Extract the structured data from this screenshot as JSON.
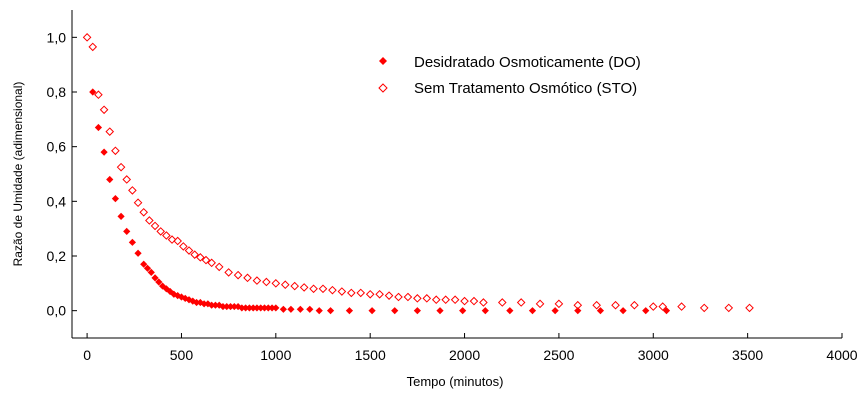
{
  "chart_data": {
    "type": "scatter",
    "xlabel": "Tempo (minutos)",
    "ylabel": "Razão de Umidade (adimensional)",
    "xlim": [
      -80,
      4000
    ],
    "ylim": [
      -0.1,
      1.1
    ],
    "x_ticks": [
      0,
      500,
      1000,
      1500,
      2000,
      2500,
      3000,
      3500,
      4000
    ],
    "x_tick_labels": [
      "0",
      "500",
      "1000",
      "1500",
      "2000",
      "2500",
      "3000",
      "3500",
      "4000"
    ],
    "y_ticks": [
      0.0,
      0.2,
      0.4,
      0.6,
      0.8,
      1.0
    ],
    "y_tick_labels": [
      "0,0",
      "0,2",
      "0,4",
      "0,6",
      "0,8",
      "1,0"
    ],
    "grid": false,
    "legend_position": "top-right",
    "colors": {
      "series_do": "#ff0000",
      "series_sto": "#ff0000",
      "axis": "#000000"
    },
    "series": [
      {
        "name": "Desidratado Osmoticamente (DO)",
        "marker": "filled-diamond",
        "x": [
          30,
          60,
          90,
          120,
          150,
          180,
          210,
          240,
          270,
          300,
          320,
          340,
          360,
          380,
          400,
          420,
          440,
          460,
          480,
          500,
          520,
          540,
          560,
          580,
          600,
          620,
          640,
          660,
          680,
          700,
          720,
          740,
          760,
          780,
          800,
          820,
          840,
          860,
          880,
          900,
          920,
          940,
          960,
          980,
          1000,
          1040,
          1080,
          1130,
          1180,
          1230,
          1290,
          1390,
          1510,
          1630,
          1750,
          1870,
          1990,
          2110,
          2240,
          2360,
          2480,
          2600,
          2720,
          2840,
          2960,
          3070
        ],
        "y": [
          0.8,
          0.67,
          0.58,
          0.48,
          0.41,
          0.345,
          0.29,
          0.25,
          0.21,
          0.17,
          0.155,
          0.14,
          0.12,
          0.105,
          0.09,
          0.08,
          0.07,
          0.06,
          0.055,
          0.05,
          0.045,
          0.04,
          0.035,
          0.03,
          0.03,
          0.025,
          0.025,
          0.02,
          0.02,
          0.02,
          0.015,
          0.015,
          0.015,
          0.015,
          0.015,
          0.01,
          0.01,
          0.01,
          0.01,
          0.01,
          0.01,
          0.01,
          0.01,
          0.01,
          0.01,
          0.005,
          0.005,
          0.005,
          0.005,
          0.0,
          0.0,
          0.0,
          0.0,
          0.0,
          0.0,
          0.0,
          0.0,
          0.0,
          0.0,
          0.0,
          0.0,
          0.0,
          0.0,
          0.0,
          0.0,
          0.0
        ]
      },
      {
        "name": "Sem Tratamento Osmótico (STO)",
        "marker": "open-diamond",
        "x": [
          0,
          30,
          60,
          90,
          120,
          150,
          180,
          210,
          240,
          270,
          300,
          330,
          360,
          390,
          420,
          450,
          480,
          510,
          540,
          570,
          600,
          630,
          660,
          700,
          750,
          800,
          850,
          900,
          950,
          1000,
          1050,
          1100,
          1150,
          1200,
          1250,
          1300,
          1350,
          1400,
          1450,
          1500,
          1550,
          1600,
          1650,
          1700,
          1750,
          1800,
          1850,
          1900,
          1950,
          2000,
          2050,
          2100,
          2200,
          2300,
          2400,
          2500,
          2600,
          2700,
          2800,
          2900,
          3000,
          3050,
          3150,
          3270,
          3400,
          3510
        ],
        "y": [
          1.0,
          0.965,
          0.79,
          0.735,
          0.655,
          0.585,
          0.525,
          0.48,
          0.44,
          0.395,
          0.36,
          0.33,
          0.31,
          0.29,
          0.275,
          0.26,
          0.255,
          0.235,
          0.22,
          0.205,
          0.195,
          0.185,
          0.175,
          0.16,
          0.14,
          0.13,
          0.12,
          0.11,
          0.105,
          0.1,
          0.095,
          0.09,
          0.085,
          0.08,
          0.08,
          0.075,
          0.07,
          0.065,
          0.065,
          0.06,
          0.06,
          0.055,
          0.05,
          0.05,
          0.045,
          0.045,
          0.04,
          0.04,
          0.04,
          0.035,
          0.035,
          0.03,
          0.03,
          0.03,
          0.025,
          0.025,
          0.02,
          0.02,
          0.02,
          0.02,
          0.015,
          0.015,
          0.015,
          0.01,
          0.01,
          0.01
        ]
      }
    ]
  }
}
